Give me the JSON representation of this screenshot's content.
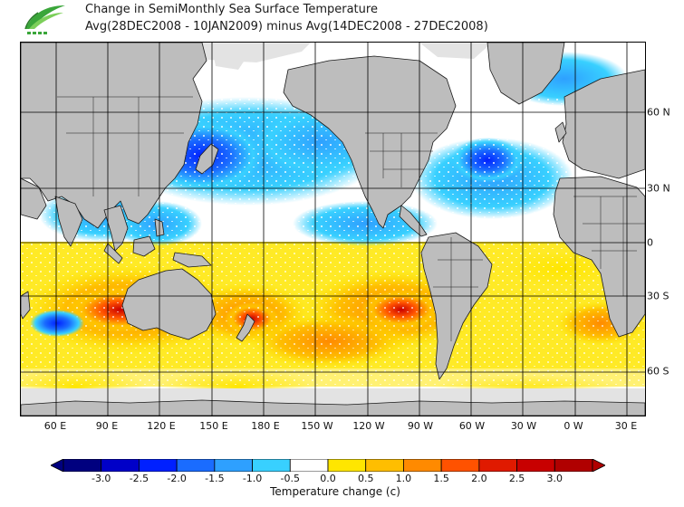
{
  "title_line1": "Change in SemiMonthly Sea Surface Temperature",
  "title_line2": "Avg(28DEC2008 - 10JAN2009) minus Avg(14DEC2008 - 27DEC2008)",
  "lon_labels": [
    "60 E",
    "90 E",
    "120 E",
    "150 E",
    "180 E",
    "150 W",
    "120 W",
    "90 W",
    "60 W",
    "30 W",
    "0 W",
    "30 E"
  ],
  "lat_labels": [
    "60 N",
    "30 N",
    "0",
    "30 S",
    "60 S"
  ],
  "colorbar": {
    "title": "Temperature change  (c)",
    "ticks": [
      "-3.0",
      "-2.5",
      "-2.0",
      "-1.5",
      "-1.0",
      "-0.5",
      "0.0",
      "0.5",
      "1.0",
      "1.5",
      "2.0",
      "2.5",
      "3.0"
    ],
    "colors": [
      "#00007f",
      "#0000c8",
      "#0020ff",
      "#1a6cff",
      "#2ea0ff",
      "#38d0ff",
      "#ffffff",
      "#ffe600",
      "#ffbe00",
      "#ff8a00",
      "#ff5200",
      "#e01a00",
      "#c80000",
      "#b00000"
    ]
  },
  "colors": {
    "land": "#bdbdbd",
    "land_outline": "#1a1a1a",
    "ice": "#e3e3e3",
    "ocean": "#ffffff",
    "logo_green": "#3aa63a"
  }
}
